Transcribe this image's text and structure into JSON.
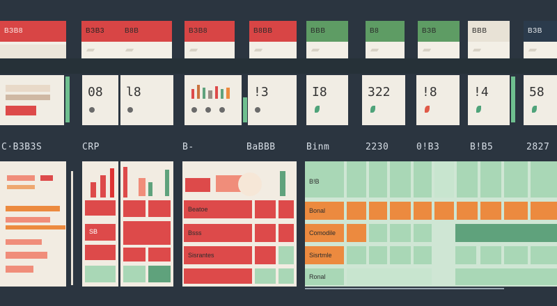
{
  "header_tabs": [
    {
      "label": "BЗB8",
      "color": "#d84545"
    },
    {
      "label": "BЗB3",
      "color": "#d84545"
    },
    {
      "label": "B8B",
      "color": "#d84545"
    },
    {
      "label": "BЗB8",
      "color": "#d84545"
    },
    {
      "label": "B8BB",
      "color": "#d84545"
    },
    {
      "label": "BBB",
      "color": "#5e9c64"
    },
    {
      "label": "B8",
      "color": "#5e9c64"
    },
    {
      "label": "BЗB",
      "color": "#5e9c64"
    },
    {
      "label": "BBB",
      "color": "#2b3b4c"
    },
    {
      "label": "BЗB",
      "color": "#2b3b4c"
    }
  ],
  "stat_numbers": [
    "08",
    "l8",
    "!3",
    "I8",
    "322",
    "!8",
    "!4",
    "58"
  ],
  "section_labels": [
    "C·BЗBЗS",
    "CRP",
    "B-",
    "BaBBB",
    "Binm",
    "2230",
    "0!BЗ",
    "B!B5",
    "2827"
  ],
  "table_rows": [
    "Bonal",
    "Comodile",
    "Sisrtmle",
    "Ronal"
  ],
  "left_rows": [
    "Beatoe",
    "Bsss",
    "Sisrantes"
  ],
  "mini_value": "SB",
  "header_value": "B!B",
  "colors": {
    "bg": "#2b3540",
    "red": "#dd4a4a",
    "orange": "#ec8a3f",
    "mint": "#a9d7b6",
    "cream": "#f3efe6"
  }
}
